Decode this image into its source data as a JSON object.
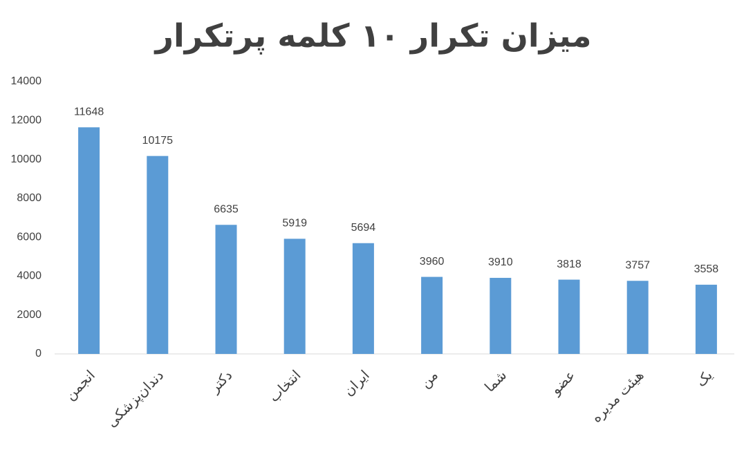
{
  "chart_data": {
    "type": "bar",
    "title": "میزان تکرار ۱۰ کلمه پرتکرار",
    "categories": [
      "انجمن",
      "دندان‌پزشکی",
      "دکتر",
      "انتخاب",
      "ایران",
      "من",
      "شما",
      "عضو",
      "هیئت مدیره",
      "یک"
    ],
    "values": [
      11648,
      10175,
      6635,
      5919,
      5694,
      3960,
      3910,
      3818,
      3757,
      3558
    ],
    "color": "#5b9bd5",
    "ylim": [
      0,
      14000
    ],
    "yticks": [
      0,
      2000,
      4000,
      6000,
      8000,
      10000,
      12000,
      14000
    ],
    "grid": false
  }
}
